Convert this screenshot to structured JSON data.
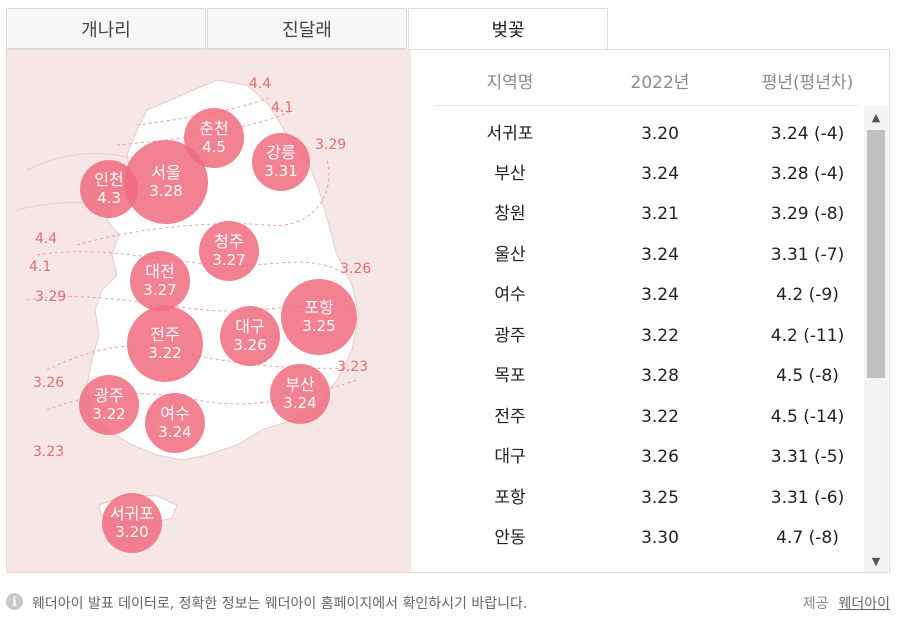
{
  "tabs": [
    {
      "label": "개나리",
      "active": false
    },
    {
      "label": "진달래",
      "active": false
    },
    {
      "label": "벚꽃",
      "active": true
    }
  ],
  "map": {
    "bubble_color": "#f06c80",
    "bubbles": [
      {
        "name": "춘천",
        "value": "4.5"
      },
      {
        "name": "서울",
        "value": "3.28"
      },
      {
        "name": "강릉",
        "value": "3.31"
      },
      {
        "name": "인천",
        "value": "4.3"
      },
      {
        "name": "청주",
        "value": "3.27"
      },
      {
        "name": "대전",
        "value": "3.27"
      },
      {
        "name": "포항",
        "value": "3.25"
      },
      {
        "name": "전주",
        "value": "3.22"
      },
      {
        "name": "대구",
        "value": "3.26"
      },
      {
        "name": "부산",
        "value": "3.24"
      },
      {
        "name": "광주",
        "value": "3.22"
      },
      {
        "name": "여수",
        "value": "3.24"
      },
      {
        "name": "서귀포",
        "value": "3.20"
      }
    ],
    "isolines": [
      "4.4",
      "4.1",
      "3.29",
      "4.4",
      "4.1",
      "3.29",
      "3.26",
      "3.23",
      "3.26",
      "3.23"
    ]
  },
  "table": {
    "headers": [
      "지역명",
      "2022년",
      "평년(평년차)"
    ],
    "rows": [
      [
        "서귀포",
        "3.20",
        "3.24 (-4)"
      ],
      [
        "부산",
        "3.24",
        "3.28 (-4)"
      ],
      [
        "창원",
        "3.21",
        "3.29 (-8)"
      ],
      [
        "울산",
        "3.24",
        "3.31 (-7)"
      ],
      [
        "여수",
        "3.24",
        "4.2 (-9)"
      ],
      [
        "광주",
        "3.22",
        "4.2 (-11)"
      ],
      [
        "목포",
        "3.28",
        "4.5 (-8)"
      ],
      [
        "전주",
        "3.22",
        "4.5 (-14)"
      ],
      [
        "대구",
        "3.26",
        "3.31 (-5)"
      ],
      [
        "포항",
        "3.25",
        "3.31 (-6)"
      ],
      [
        "안동",
        "3.30",
        "4.7 (-8)"
      ]
    ]
  },
  "footer": {
    "notice": "웨더아이 발표 데이터로, 정확한 정보는 웨더아이 홈페이지에서 확인하시기 바랍니다.",
    "provider_label": "제공",
    "provider_link": "웨더아이"
  }
}
